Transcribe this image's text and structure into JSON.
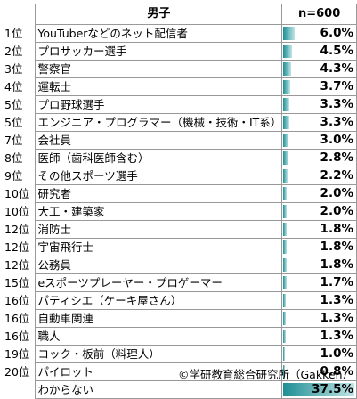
{
  "chart_data": {
    "type": "table",
    "header": {
      "label": "男子",
      "value": "n=600"
    },
    "rows": [
      {
        "rank": "1位",
        "label": "YouTuberなどのネット配信者",
        "value": 6.0,
        "text": "6.0%"
      },
      {
        "rank": "2位",
        "label": "プロサッカー選手",
        "value": 4.5,
        "text": "4.5%"
      },
      {
        "rank": "3位",
        "label": "警察官",
        "value": 4.3,
        "text": "4.3%"
      },
      {
        "rank": "4位",
        "label": "運転士",
        "value": 3.7,
        "text": "3.7%"
      },
      {
        "rank": "5位",
        "label": "プロ野球選手",
        "value": 3.3,
        "text": "3.3%"
      },
      {
        "rank": "5位",
        "label": "エンジニア・プログラマー（機械・技術・IT系）",
        "value": 3.3,
        "text": "3.3%"
      },
      {
        "rank": "7位",
        "label": "会社員",
        "value": 3.0,
        "text": "3.0%"
      },
      {
        "rank": "8位",
        "label": "医師（歯科医師含む）",
        "value": 2.8,
        "text": "2.8%"
      },
      {
        "rank": "9位",
        "label": "その他スポーツ選手",
        "value": 2.2,
        "text": "2.2%"
      },
      {
        "rank": "10位",
        "label": "研究者",
        "value": 2.0,
        "text": "2.0%"
      },
      {
        "rank": "10位",
        "label": "大工・建築家",
        "value": 2.0,
        "text": "2.0%"
      },
      {
        "rank": "12位",
        "label": "消防士",
        "value": 1.8,
        "text": "1.8%"
      },
      {
        "rank": "12位",
        "label": "宇宙飛行士",
        "value": 1.8,
        "text": "1.8%"
      },
      {
        "rank": "12位",
        "label": "公務員",
        "value": 1.8,
        "text": "1.8%"
      },
      {
        "rank": "15位",
        "label": "eスポーツプレーヤー・プロゲーマー",
        "value": 1.7,
        "text": "1.7%"
      },
      {
        "rank": "16位",
        "label": "パティシエ（ケーキ屋さん）",
        "value": 1.3,
        "text": "1.3%"
      },
      {
        "rank": "16位",
        "label": "自動車関連",
        "value": 1.3,
        "text": "1.3%"
      },
      {
        "rank": "16位",
        "label": "職人",
        "value": 1.3,
        "text": "1.3%"
      },
      {
        "rank": "19位",
        "label": "コック・板前（料理人）",
        "value": 1.0,
        "text": "1.0%"
      },
      {
        "rank": "20位",
        "label": "パイロット",
        "value": 0.8,
        "text": "0.8%"
      },
      {
        "rank": "",
        "label": "わからない",
        "value": 37.5,
        "text": "37.5%"
      }
    ],
    "bar_color": "#1e8f94",
    "max_value": 37.5
  },
  "credit": "©学研教育総合研究所（Gakken）"
}
